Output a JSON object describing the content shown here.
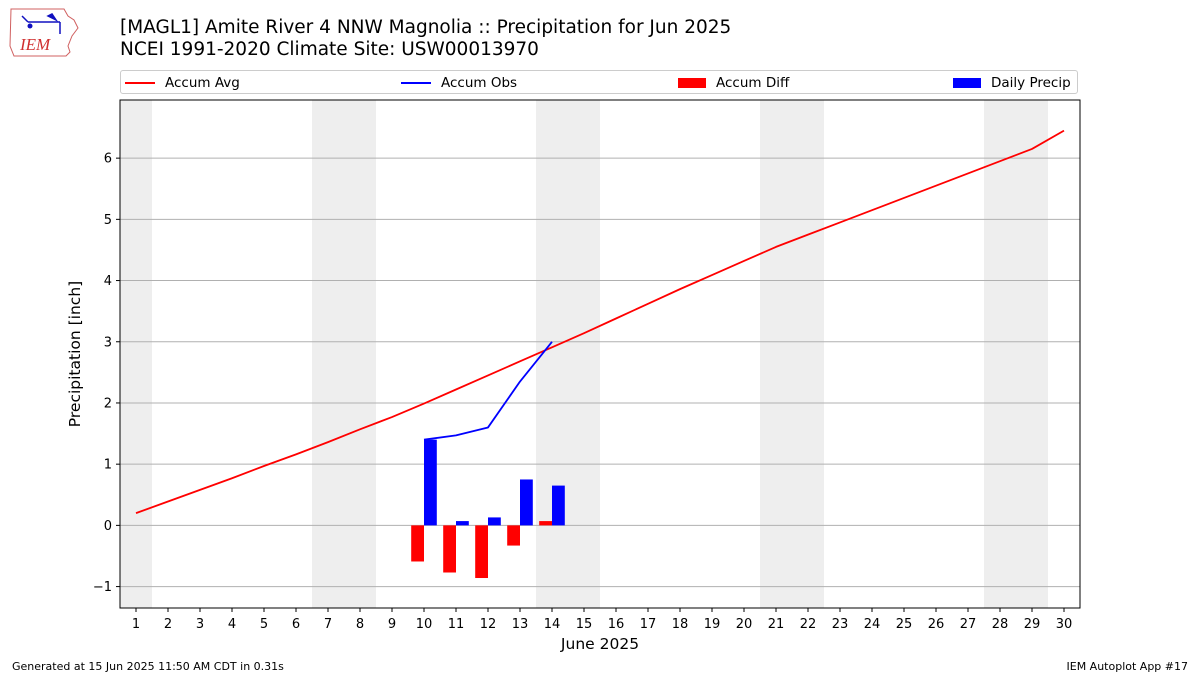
{
  "title": {
    "line1": "[MAGL1] Amite River 4 NNW Magnolia :: Precipitation for Jun 2025",
    "line2": "NCEI 1991-2020 Climate Site: USW00013970"
  },
  "logo": {
    "text": "IEM",
    "icon": "iem-iowa-weather-logo"
  },
  "footer": {
    "left": "Generated at 15 Jun 2025 11:50 AM CDT in 0.31s",
    "right": "IEM Autoplot App #17"
  },
  "colors": {
    "avg": "#ff0000",
    "obs": "#0000ff",
    "diff": "#ff0000",
    "daily": "#0000ff",
    "weekend": "#eeeeee",
    "grid": "#b0b0b0"
  },
  "chart_data": {
    "type": "bar",
    "xlabel": "June 2025",
    "ylabel": "Precipitation [inch]",
    "xlim": [
      0.5,
      30.5
    ],
    "ylim": [
      -1.35,
      6.95
    ],
    "yticks": [
      -1,
      0,
      1,
      2,
      3,
      4,
      5,
      6
    ],
    "xticks": [
      1,
      2,
      3,
      4,
      5,
      6,
      7,
      8,
      9,
      10,
      11,
      12,
      13,
      14,
      15,
      16,
      17,
      18,
      19,
      20,
      21,
      22,
      23,
      24,
      25,
      26,
      27,
      28,
      29,
      30
    ],
    "weekend_days": [
      1,
      7,
      8,
      14,
      15,
      21,
      22,
      28,
      29
    ],
    "legend_position": "top",
    "grid": "y",
    "legend": {
      "avg": "Accum Avg",
      "obs": "Accum Obs",
      "diff": "Accum Diff",
      "daily": "Daily Precip"
    },
    "accum_avg": {
      "days": [
        1,
        2,
        3,
        4,
        5,
        6,
        7,
        8,
        9,
        10,
        11,
        12,
        13,
        14,
        15,
        16,
        17,
        18,
        19,
        20,
        21,
        22,
        23,
        24,
        25,
        26,
        27,
        28,
        29,
        30
      ],
      "values": [
        0.2,
        0.39,
        0.58,
        0.77,
        0.97,
        1.16,
        1.36,
        1.57,
        1.77,
        1.99,
        2.22,
        2.45,
        2.68,
        2.91,
        3.14,
        3.38,
        3.62,
        3.86,
        4.09,
        4.32,
        4.55,
        4.75,
        4.95,
        5.15,
        5.35,
        5.55,
        5.75,
        5.95,
        6.15,
        6.45
      ]
    },
    "accum_obs": {
      "days": [
        10,
        11,
        12,
        13,
        14
      ],
      "values": [
        1.4,
        1.47,
        1.6,
        2.35,
        3.0
      ]
    },
    "accum_diff": {
      "days": [
        10,
        11,
        12,
        13,
        14
      ],
      "values": [
        -0.59,
        -0.77,
        -0.86,
        -0.33,
        0.07
      ]
    },
    "daily_precip": {
      "days": [
        10,
        11,
        12,
        13,
        14
      ],
      "values": [
        1.4,
        0.07,
        0.13,
        0.75,
        0.65
      ]
    }
  }
}
